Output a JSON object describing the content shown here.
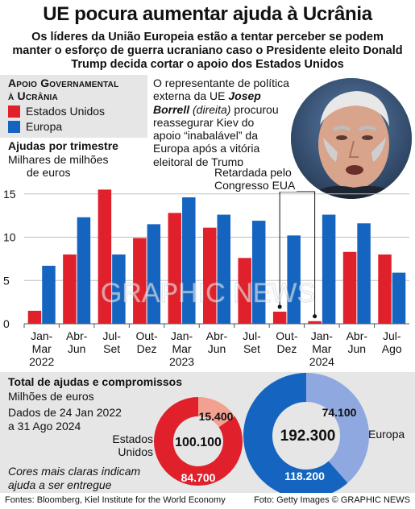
{
  "header": {
    "title": "UE pocura aumentar ajuda à Ucrânia",
    "subtitle_lines": [
      "Os líderes da União Europeia estão a tentar perceber se podem",
      "manter o esforço de guerra ucraniano caso o Presidente eleito Donald",
      "Trump decida cortar o apoio dos Estados Unidos"
    ]
  },
  "legend": {
    "title_line1": "Apoio Governamental",
    "title_line2": "à Ucrânia",
    "items": [
      {
        "label": "Estados Unidos",
        "color": "#e0202b"
      },
      {
        "label": "Europa",
        "color": "#1565c0"
      }
    ]
  },
  "quote": {
    "line1": "O representante de política",
    "line2_prefix": "externa da UE ",
    "name1": "Josep",
    "name2": "Borrell",
    "role": " (direita)",
    "line3_suffix": " procurou",
    "line4": "reassegurar Kiev do",
    "line5": "apoio “inabalável” da",
    "line6": "Europa após a vitória",
    "line7": "eleitoral de Trump"
  },
  "congress_note": {
    "line1": "Retardada pelo",
    "line2": "Congresso EUA"
  },
  "chart_data": {
    "type": "bar",
    "title": "Ajudas por trimestre",
    "ylabel_line1": "Milhares de milhões",
    "ylabel_line2": "de euros",
    "categories": [
      {
        "line1": "Jan-",
        "line2": "Mar"
      },
      {
        "line1": "Abr-",
        "line2": "Jun"
      },
      {
        "line1": "Jul-",
        "line2": "Set"
      },
      {
        "line1": "Out-",
        "line2": "Dez"
      },
      {
        "line1": "Jan-",
        "line2": "Mar"
      },
      {
        "line1": "Abr-",
        "line2": "Jun"
      },
      {
        "line1": "Jul-",
        "line2": "Set"
      },
      {
        "line1": "Out-",
        "line2": "Dez"
      },
      {
        "line1": "Jan-",
        "line2": "Mar"
      },
      {
        "line1": "Abr-",
        "line2": "Jun"
      },
      {
        "line1": "Jul-",
        "line2": "Ago"
      }
    ],
    "years": [
      {
        "label": "2022",
        "category_index": 0
      },
      {
        "label": "2023",
        "category_index": 4
      },
      {
        "label": "2024",
        "category_index": 8
      }
    ],
    "series": [
      {
        "name": "Estados Unidos",
        "color": "#e0202b",
        "values": [
          1.5,
          8.0,
          15.5,
          9.9,
          12.8,
          11.1,
          7.6,
          1.4,
          0.3,
          8.3,
          8.0
        ]
      },
      {
        "name": "Europa",
        "color": "#1565c0",
        "values": [
          6.7,
          12.3,
          8.0,
          11.5,
          14.6,
          12.6,
          11.9,
          10.2,
          12.6,
          11.6,
          5.9
        ]
      }
    ],
    "ylim": [
      0,
      16
    ],
    "yticks": [
      0,
      5,
      10,
      15
    ],
    "grid": true,
    "legend_position": "top-left"
  },
  "totals": {
    "title": "Total de ajudas e compromissos",
    "unit": "Milhões de euros",
    "dates_line1": "Dados de 24 Jan 2022",
    "dates_line2": "a 31 Ago 2024",
    "note_line1": "Cores mais claras indicam",
    "note_line2": "ajuda a ser entregue",
    "donuts": [
      {
        "name_line1": "Estados",
        "name_line2": "Unidos",
        "total": "100.100",
        "delivered": "84.700",
        "pending": "15.400",
        "delivered_value": 84700,
        "pending_value": 15400,
        "color": "#e0202b",
        "light_color": "#f2a090"
      },
      {
        "name": "Europa",
        "total": "192.300",
        "delivered": "118.200",
        "pending": "74.100",
        "delivered_value": 118200,
        "pending_value": 74100,
        "color": "#1565c0",
        "light_color": "#8fa9e0"
      }
    ]
  },
  "footer": {
    "sources": "Fontes: Bloomberg, Kiel Institute for the World Economy",
    "credits": "Foto: Getty Images  © GRAPHIC NEWS"
  },
  "watermark": "GRAPHIC NEWS"
}
